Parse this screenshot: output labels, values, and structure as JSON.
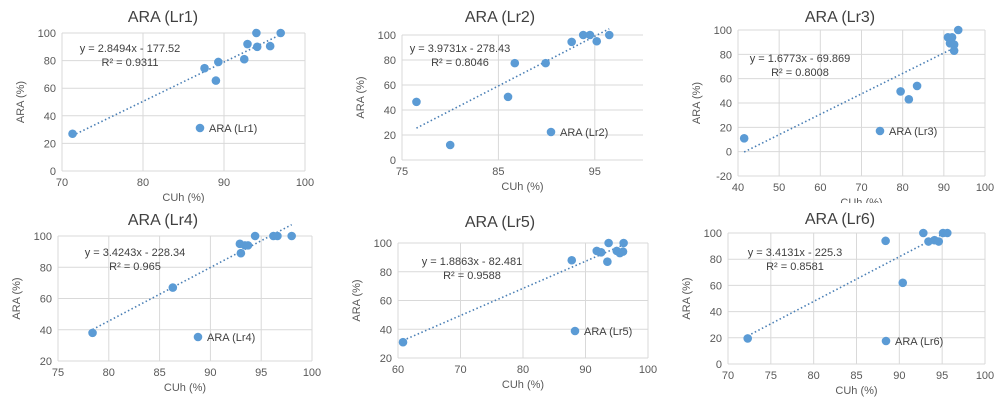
{
  "chart_data": [
    {
      "type": "scatter",
      "title": "ARA (Lr1)",
      "xlabel": "CUh (%)",
      "ylabel": "ARA (%)",
      "legend": "ARA (Lr1)",
      "xlim": [
        70,
        100
      ],
      "xticks": [
        70,
        80,
        90,
        100
      ],
      "ylim": [
        0,
        100
      ],
      "yticks": [
        0,
        20,
        40,
        60,
        80,
        100
      ],
      "grid": true,
      "trendline": {
        "slope": 2.8494,
        "intercept": -177.52,
        "equation": "y = 2.8494x - 177.52",
        "r2": "R² = 0.9311"
      },
      "x": [
        71.3,
        87.6,
        89,
        89.3,
        92.5,
        92.9,
        94,
        94.1,
        95.7,
        97
      ],
      "y": [
        27,
        74.5,
        65.5,
        79,
        81,
        92,
        100,
        90,
        90.5,
        100
      ]
    },
    {
      "type": "scatter",
      "title": "ARA (Lr2)",
      "xlabel": "CUh (%)",
      "ylabel": "ARA (%)",
      "legend": "ARA (Lr2)",
      "xlim": [
        75,
        100
      ],
      "xticks": [
        75,
        85,
        95
      ],
      "ylim": [
        0,
        100
      ],
      "yticks": [
        0,
        20,
        40,
        60,
        80,
        100
      ],
      "grid": true,
      "trendline": {
        "slope": 3.9731,
        "intercept": -278.43,
        "equation": "y = 3.9731x - 278.43",
        "r2": "R² = 0.8046"
      },
      "x": [
        76.5,
        80,
        86,
        86.7,
        89.9,
        92.6,
        93.8,
        94.5,
        95.2,
        96.5
      ],
      "y": [
        46.5,
        12,
        50.5,
        77.5,
        77.5,
        94.5,
        100,
        100,
        95,
        100
      ]
    },
    {
      "type": "scatter",
      "title": "ARA (Lr3)",
      "xlabel": "CUh (%)",
      "ylabel": "ARA (%)",
      "legend": "ARA (Lr3)",
      "xlim": [
        40,
        100
      ],
      "xticks": [
        40,
        50,
        60,
        70,
        80,
        90,
        100
      ],
      "ylim": [
        -20,
        100
      ],
      "yticks": [
        -20,
        0,
        20,
        40,
        60,
        80,
        100
      ],
      "grid": true,
      "trendline": {
        "slope": 1.6773,
        "intercept": -69.869,
        "equation": "y = 1.6773x - 69.869",
        "r2": "R² = 0.8008"
      },
      "x": [
        41.5,
        79.5,
        81.5,
        83.5,
        91,
        91.5,
        92,
        92.5,
        92.5,
        93.5
      ],
      "y": [
        11,
        49.5,
        43,
        54,
        94,
        89,
        94,
        88,
        83,
        100
      ]
    },
    {
      "type": "scatter",
      "title": "ARA (Lr4)",
      "xlabel": "CUh (%)",
      "ylabel": "ARA (%)",
      "legend": "ARA (Lr4)",
      "xlim": [
        75,
        100
      ],
      "xticks": [
        75,
        80,
        85,
        90,
        95,
        100
      ],
      "ylim": [
        20,
        100
      ],
      "yticks": [
        20,
        40,
        60,
        80,
        100
      ],
      "grid": true,
      "trendline": {
        "slope": 3.4243,
        "intercept": -228.34,
        "equation": "y = 3.4243x - 228.34",
        "r2": "R² = 0.965"
      },
      "x": [
        78.4,
        86.3,
        92.9,
        93,
        93.4,
        93.7,
        94.4,
        96.2,
        96.6,
        98
      ],
      "y": [
        38,
        67,
        95,
        89,
        94,
        94,
        100,
        100,
        100,
        100
      ]
    },
    {
      "type": "scatter",
      "title": "ARA (Lr5)",
      "xlabel": "CUh (%)",
      "ylabel": "ARA (%)",
      "legend": "ARA (Lr5)",
      "xlim": [
        60,
        100
      ],
      "xticks": [
        60,
        70,
        80,
        90,
        100
      ],
      "ylim": [
        20,
        100
      ],
      "yticks": [
        20,
        40,
        60,
        80,
        100
      ],
      "grid": true,
      "trendline": {
        "slope": 1.8863,
        "intercept": -82.481,
        "equation": "y = 1.8863x - 82.481",
        "r2": "R² = 0.9588"
      },
      "x": [
        60.8,
        87.8,
        91.8,
        92.5,
        93.5,
        93.7,
        95,
        95.5,
        96,
        96.1
      ],
      "y": [
        31,
        88,
        94.5,
        93.5,
        87,
        100,
        94.5,
        93,
        94,
        100
      ]
    },
    {
      "type": "scatter",
      "title": "ARA (Lr6)",
      "xlabel": "CUh (%)",
      "ylabel": "ARA (%)",
      "legend": "ARA (Lr6)",
      "xlim": [
        70,
        100
      ],
      "xticks": [
        70,
        75,
        80,
        85,
        90,
        95,
        100
      ],
      "ylim": [
        0,
        100
      ],
      "yticks": [
        0,
        20,
        40,
        60,
        80,
        100
      ],
      "grid": true,
      "trendline": {
        "slope": 3.4131,
        "intercept": -225.3,
        "equation": "y = 3.4131x - 225.3",
        "r2": "R² = 0.8581"
      },
      "x": [
        72.3,
        88.4,
        90.4,
        92.8,
        93.4,
        94.1,
        94.6,
        95.1,
        95.6
      ],
      "y": [
        19.5,
        94,
        62,
        100,
        93.5,
        94.5,
        93.5,
        100,
        100
      ]
    }
  ],
  "colors": {
    "marker": "#5b9bd5",
    "trend": "#4a7fb5",
    "grid": "#d9d9d9"
  }
}
